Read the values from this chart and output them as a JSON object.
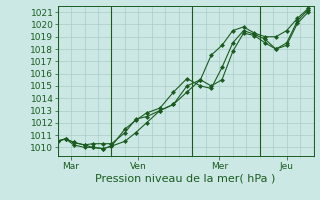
{
  "xlabel": "Pression niveau de la mer( hPa )",
  "xlim": [
    0,
    9.5
  ],
  "ylim": [
    1009.3,
    1021.5
  ],
  "yticks": [
    1010,
    1011,
    1012,
    1013,
    1014,
    1015,
    1016,
    1017,
    1018,
    1019,
    1020,
    1021
  ],
  "xtick_positions": [
    0.5,
    3.0,
    6.0,
    8.5
  ],
  "xtick_labels": [
    "Mar",
    "Ven",
    "Mer",
    "Jeu"
  ],
  "vline_positions": [
    0.0,
    2.0,
    5.0,
    7.5,
    9.5
  ],
  "bg_color": "#cce8e4",
  "grid_color": "#aaccc8",
  "line_color": "#1a5c20",
  "line1_x": [
    0.0,
    0.3,
    0.6,
    1.0,
    1.3,
    1.7,
    2.0,
    2.5,
    2.9,
    3.3,
    3.8,
    4.3,
    4.8,
    5.3,
    5.7,
    6.1,
    6.5,
    6.9,
    7.3,
    7.7,
    8.1,
    8.5,
    8.9,
    9.3
  ],
  "line1_y": [
    1010.5,
    1010.7,
    1010.4,
    1010.2,
    1010.0,
    1009.9,
    1010.1,
    1010.5,
    1011.2,
    1012.0,
    1013.0,
    1013.5,
    1015.0,
    1015.5,
    1015.0,
    1015.5,
    1017.8,
    1019.3,
    1019.1,
    1018.5,
    1018.0,
    1018.3,
    1020.1,
    1021.0
  ],
  "line2_x": [
    0.0,
    0.3,
    0.6,
    1.0,
    1.3,
    1.7,
    2.0,
    2.5,
    2.9,
    3.3,
    3.8,
    4.3,
    4.8,
    5.3,
    5.7,
    6.1,
    6.5,
    6.9,
    7.3,
    7.7,
    8.1,
    8.5,
    8.9,
    9.3
  ],
  "line2_y": [
    1010.5,
    1010.7,
    1010.2,
    1010.0,
    1010.0,
    1009.9,
    1010.1,
    1011.5,
    1012.2,
    1012.8,
    1013.2,
    1014.5,
    1015.6,
    1015.0,
    1014.8,
    1016.5,
    1018.5,
    1019.5,
    1019.2,
    1018.8,
    1018.0,
    1018.5,
    1020.3,
    1021.2
  ],
  "line3_x": [
    0.0,
    0.3,
    0.6,
    1.0,
    1.3,
    1.7,
    2.0,
    2.5,
    2.9,
    3.3,
    3.8,
    4.3,
    4.8,
    5.3,
    5.7,
    6.1,
    6.5,
    6.9,
    7.3,
    7.7,
    8.1,
    8.5,
    8.9,
    9.3
  ],
  "line3_y": [
    1010.5,
    1010.7,
    1010.4,
    1010.2,
    1010.3,
    1010.3,
    1010.3,
    1011.2,
    1012.3,
    1012.5,
    1013.0,
    1013.5,
    1014.5,
    1015.5,
    1017.5,
    1018.3,
    1019.5,
    1019.8,
    1019.3,
    1019.0,
    1019.0,
    1019.5,
    1020.5,
    1021.3
  ],
  "marker": "D",
  "marker_size": 2,
  "linewidth": 0.8,
  "fontsize_label": 8,
  "fontsize_tick": 6.5
}
